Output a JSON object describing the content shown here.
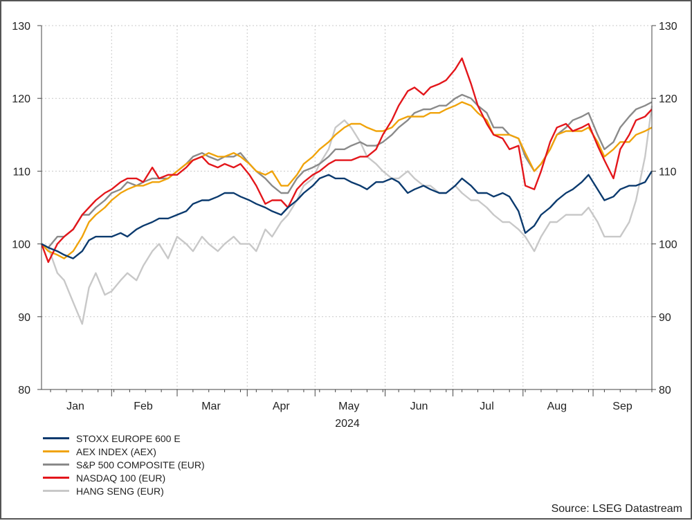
{
  "chart_data": {
    "type": "line",
    "year_label": "2024",
    "source": "Source: LSEG Datastream",
    "ylim": [
      80,
      130
    ],
    "y_ticks": [
      "80",
      "90",
      "100",
      "110",
      "120",
      "130"
    ],
    "x_range": [
      "2024-01-01",
      "2024-09-27"
    ],
    "months": [
      {
        "label": "Jan",
        "date": "2024-01-16"
      },
      {
        "label": "Feb",
        "date": "2024-02-15"
      },
      {
        "label": "Mar",
        "date": "2024-03-16"
      },
      {
        "label": "Apr",
        "date": "2024-04-16"
      },
      {
        "label": "May",
        "date": "2024-05-16"
      },
      {
        "label": "Jun",
        "date": "2024-06-16"
      },
      {
        "label": "Jul",
        "date": "2024-07-16"
      },
      {
        "label": "Aug",
        "date": "2024-08-16"
      },
      {
        "label": "Sep",
        "date": "2024-09-14"
      }
    ],
    "grid": true,
    "legend_position": "bottom-left",
    "series": [
      {
        "name": "HANG SENG (EUR)",
        "color": "#c8c8c8",
        "x": [
          "2024-01-01",
          "2024-01-04",
          "2024-01-08",
          "2024-01-11",
          "2024-01-15",
          "2024-01-19",
          "2024-01-22",
          "2024-01-25",
          "2024-01-29",
          "2024-02-01",
          "2024-02-05",
          "2024-02-08",
          "2024-02-12",
          "2024-02-15",
          "2024-02-19",
          "2024-02-22",
          "2024-02-26",
          "2024-03-01",
          "2024-03-05",
          "2024-03-08",
          "2024-03-12",
          "2024-03-15",
          "2024-03-19",
          "2024-03-22",
          "2024-03-26",
          "2024-03-29",
          "2024-04-02",
          "2024-04-05",
          "2024-04-09",
          "2024-04-12",
          "2024-04-16",
          "2024-04-19",
          "2024-04-23",
          "2024-04-26",
          "2024-04-30",
          "2024-05-03",
          "2024-05-07",
          "2024-05-10",
          "2024-05-14",
          "2024-05-17",
          "2024-05-21",
          "2024-05-24",
          "2024-05-28",
          "2024-05-31",
          "2024-06-04",
          "2024-06-07",
          "2024-06-11",
          "2024-06-14",
          "2024-06-18",
          "2024-06-21",
          "2024-06-25",
          "2024-06-28",
          "2024-07-02",
          "2024-07-05",
          "2024-07-09",
          "2024-07-12",
          "2024-07-16",
          "2024-07-19",
          "2024-07-23",
          "2024-07-26",
          "2024-07-30",
          "2024-08-02",
          "2024-08-06",
          "2024-08-09",
          "2024-08-13",
          "2024-08-16",
          "2024-08-20",
          "2024-08-23",
          "2024-08-27",
          "2024-08-30",
          "2024-09-03",
          "2024-09-06",
          "2024-09-10",
          "2024-09-13",
          "2024-09-17",
          "2024-09-20",
          "2024-09-24",
          "2024-09-27"
        ],
        "values": [
          100,
          99.5,
          96,
          95,
          92,
          89,
          94,
          96,
          93,
          93.5,
          95,
          96,
          95,
          97,
          99,
          100,
          98,
          101,
          100,
          99,
          101,
          100,
          99,
          100,
          101,
          100,
          100,
          99,
          102,
          101,
          103,
          104,
          106,
          108,
          109,
          111,
          113,
          116,
          117,
          116,
          114,
          112,
          111,
          110,
          109,
          109,
          110,
          109,
          108,
          108,
          107,
          107,
          108,
          107,
          106,
          106,
          105,
          104,
          103,
          103,
          102,
          101,
          99,
          101,
          103,
          103,
          104,
          104,
          104,
          105,
          103,
          101,
          101,
          101,
          103,
          106,
          112,
          119
        ]
      },
      {
        "name": "S&P 500 COMPOSITE (EUR)",
        "color": "#8a8a8a",
        "x": [
          "2024-01-01",
          "2024-01-04",
          "2024-01-08",
          "2024-01-11",
          "2024-01-15",
          "2024-01-19",
          "2024-01-22",
          "2024-01-25",
          "2024-01-29",
          "2024-02-01",
          "2024-02-05",
          "2024-02-08",
          "2024-02-12",
          "2024-02-15",
          "2024-02-19",
          "2024-02-22",
          "2024-02-26",
          "2024-03-01",
          "2024-03-05",
          "2024-03-08",
          "2024-03-12",
          "2024-03-15",
          "2024-03-19",
          "2024-03-22",
          "2024-03-26",
          "2024-03-29",
          "2024-04-02",
          "2024-04-05",
          "2024-04-09",
          "2024-04-12",
          "2024-04-16",
          "2024-04-19",
          "2024-04-23",
          "2024-04-26",
          "2024-04-30",
          "2024-05-03",
          "2024-05-07",
          "2024-05-10",
          "2024-05-14",
          "2024-05-17",
          "2024-05-21",
          "2024-05-24",
          "2024-05-28",
          "2024-05-31",
          "2024-06-04",
          "2024-06-07",
          "2024-06-11",
          "2024-06-14",
          "2024-06-18",
          "2024-06-21",
          "2024-06-25",
          "2024-06-28",
          "2024-07-02",
          "2024-07-05",
          "2024-07-09",
          "2024-07-12",
          "2024-07-16",
          "2024-07-19",
          "2024-07-23",
          "2024-07-26",
          "2024-07-30",
          "2024-08-02",
          "2024-08-06",
          "2024-08-09",
          "2024-08-13",
          "2024-08-16",
          "2024-08-20",
          "2024-08-23",
          "2024-08-27",
          "2024-08-30",
          "2024-09-03",
          "2024-09-06",
          "2024-09-10",
          "2024-09-13",
          "2024-09-17",
          "2024-09-20",
          "2024-09-24",
          "2024-09-27"
        ],
        "values": [
          100,
          99.5,
          101,
          101,
          102,
          104,
          104,
          105,
          106,
          107,
          107.5,
          108.5,
          108,
          108.5,
          109,
          109,
          109,
          110,
          111,
          112,
          112.5,
          112,
          111.5,
          112,
          112,
          112.5,
          111,
          110,
          109,
          108,
          107,
          107,
          109,
          110,
          110.5,
          111,
          112,
          113,
          113,
          113.5,
          114,
          113.5,
          113.5,
          114,
          115,
          116,
          117,
          118,
          118.5,
          118.5,
          119,
          119,
          120,
          120.5,
          120,
          119,
          118,
          116,
          116,
          115,
          114.5,
          112,
          110,
          111,
          113,
          115,
          116,
          117,
          117.5,
          118,
          115,
          113,
          114,
          116,
          117.5,
          118.5,
          119,
          119.5
        ]
      },
      {
        "name": "AEX INDEX (AEX)",
        "color": "#f0a30a",
        "x": [
          "2024-01-01",
          "2024-01-04",
          "2024-01-08",
          "2024-01-11",
          "2024-01-15",
          "2024-01-19",
          "2024-01-22",
          "2024-01-25",
          "2024-01-29",
          "2024-02-01",
          "2024-02-05",
          "2024-02-08",
          "2024-02-12",
          "2024-02-15",
          "2024-02-19",
          "2024-02-22",
          "2024-02-26",
          "2024-03-01",
          "2024-03-05",
          "2024-03-08",
          "2024-03-12",
          "2024-03-15",
          "2024-03-19",
          "2024-03-22",
          "2024-03-26",
          "2024-03-29",
          "2024-04-02",
          "2024-04-05",
          "2024-04-09",
          "2024-04-12",
          "2024-04-16",
          "2024-04-19",
          "2024-04-23",
          "2024-04-26",
          "2024-04-30",
          "2024-05-03",
          "2024-05-07",
          "2024-05-10",
          "2024-05-14",
          "2024-05-17",
          "2024-05-21",
          "2024-05-24",
          "2024-05-28",
          "2024-05-31",
          "2024-06-04",
          "2024-06-07",
          "2024-06-11",
          "2024-06-14",
          "2024-06-18",
          "2024-06-21",
          "2024-06-25",
          "2024-06-28",
          "2024-07-02",
          "2024-07-05",
          "2024-07-09",
          "2024-07-12",
          "2024-07-16",
          "2024-07-19",
          "2024-07-23",
          "2024-07-26",
          "2024-07-30",
          "2024-08-02",
          "2024-08-06",
          "2024-08-09",
          "2024-08-13",
          "2024-08-16",
          "2024-08-20",
          "2024-08-23",
          "2024-08-27",
          "2024-08-30",
          "2024-09-03",
          "2024-09-06",
          "2024-09-10",
          "2024-09-13",
          "2024-09-17",
          "2024-09-20",
          "2024-09-24",
          "2024-09-27"
        ],
        "values": [
          100,
          99,
          98.5,
          98,
          99,
          101,
          103,
          104,
          105,
          106,
          107,
          107.5,
          108,
          108,
          108.5,
          108.5,
          109,
          110,
          111,
          111.5,
          112,
          112.5,
          112,
          112,
          112.5,
          112,
          111,
          110,
          109.5,
          110,
          108,
          108,
          109.5,
          111,
          112,
          113,
          114,
          115,
          116,
          116.5,
          116.5,
          116,
          115.5,
          115.5,
          116,
          117,
          117.5,
          117.5,
          117.5,
          118,
          118,
          118.5,
          119,
          119.5,
          119,
          118,
          117,
          115,
          115,
          115,
          114.5,
          112.5,
          110,
          111,
          113,
          115,
          115.5,
          115.5,
          115.5,
          116,
          114,
          112,
          113,
          114,
          114,
          115,
          115.5,
          116
        ]
      },
      {
        "name": "NASDAQ 100 (EUR)",
        "color": "#e3161b",
        "x": [
          "2024-01-01",
          "2024-01-04",
          "2024-01-08",
          "2024-01-11",
          "2024-01-15",
          "2024-01-19",
          "2024-01-22",
          "2024-01-25",
          "2024-01-29",
          "2024-02-01",
          "2024-02-05",
          "2024-02-08",
          "2024-02-12",
          "2024-02-15",
          "2024-02-19",
          "2024-02-22",
          "2024-02-26",
          "2024-03-01",
          "2024-03-05",
          "2024-03-08",
          "2024-03-12",
          "2024-03-15",
          "2024-03-19",
          "2024-03-22",
          "2024-03-26",
          "2024-03-29",
          "2024-04-02",
          "2024-04-05",
          "2024-04-09",
          "2024-04-12",
          "2024-04-16",
          "2024-04-19",
          "2024-04-23",
          "2024-04-26",
          "2024-04-30",
          "2024-05-03",
          "2024-05-07",
          "2024-05-10",
          "2024-05-14",
          "2024-05-17",
          "2024-05-21",
          "2024-05-24",
          "2024-05-28",
          "2024-05-31",
          "2024-06-04",
          "2024-06-07",
          "2024-06-11",
          "2024-06-14",
          "2024-06-18",
          "2024-06-21",
          "2024-06-25",
          "2024-06-28",
          "2024-07-02",
          "2024-07-05",
          "2024-07-09",
          "2024-07-12",
          "2024-07-16",
          "2024-07-19",
          "2024-07-23",
          "2024-07-26",
          "2024-07-30",
          "2024-08-02",
          "2024-08-06",
          "2024-08-09",
          "2024-08-13",
          "2024-08-16",
          "2024-08-20",
          "2024-08-23",
          "2024-08-27",
          "2024-08-30",
          "2024-09-03",
          "2024-09-06",
          "2024-09-10",
          "2024-09-13",
          "2024-09-17",
          "2024-09-20",
          "2024-09-24",
          "2024-09-27"
        ],
        "values": [
          100,
          97.5,
          100,
          101,
          102,
          104,
          105,
          106,
          107,
          107.5,
          108.5,
          109,
          109,
          108.5,
          110.5,
          109,
          109.5,
          109.5,
          110.5,
          111.5,
          112,
          111,
          110.5,
          111,
          110.5,
          111,
          109.5,
          108,
          105.5,
          106,
          106,
          105,
          107.5,
          108.5,
          109.5,
          110,
          111,
          111.5,
          111.5,
          111.5,
          112,
          112,
          113,
          115,
          117,
          119,
          121,
          121.5,
          120.5,
          121.5,
          122,
          122.5,
          124,
          125.5,
          122,
          119,
          116.5,
          115,
          114.5,
          113,
          113.5,
          108,
          107.5,
          110,
          114,
          116,
          116.5,
          115.5,
          116,
          116.5,
          113.5,
          111.5,
          109,
          113,
          115,
          117,
          117.5,
          118.5
        ]
      },
      {
        "name": "STOXX EUROPE 600 E",
        "color": "#0b3a6e",
        "x": [
          "2024-01-01",
          "2024-01-04",
          "2024-01-08",
          "2024-01-11",
          "2024-01-15",
          "2024-01-19",
          "2024-01-22",
          "2024-01-25",
          "2024-01-29",
          "2024-02-01",
          "2024-02-05",
          "2024-02-08",
          "2024-02-12",
          "2024-02-15",
          "2024-02-19",
          "2024-02-22",
          "2024-02-26",
          "2024-03-01",
          "2024-03-05",
          "2024-03-08",
          "2024-03-12",
          "2024-03-15",
          "2024-03-19",
          "2024-03-22",
          "2024-03-26",
          "2024-03-29",
          "2024-04-02",
          "2024-04-05",
          "2024-04-09",
          "2024-04-12",
          "2024-04-16",
          "2024-04-19",
          "2024-04-23",
          "2024-04-26",
          "2024-04-30",
          "2024-05-03",
          "2024-05-07",
          "2024-05-10",
          "2024-05-14",
          "2024-05-17",
          "2024-05-21",
          "2024-05-24",
          "2024-05-28",
          "2024-05-31",
          "2024-06-04",
          "2024-06-07",
          "2024-06-11",
          "2024-06-14",
          "2024-06-18",
          "2024-06-21",
          "2024-06-25",
          "2024-06-28",
          "2024-07-02",
          "2024-07-05",
          "2024-07-09",
          "2024-07-12",
          "2024-07-16",
          "2024-07-19",
          "2024-07-23",
          "2024-07-26",
          "2024-07-30",
          "2024-08-02",
          "2024-08-06",
          "2024-08-09",
          "2024-08-13",
          "2024-08-16",
          "2024-08-20",
          "2024-08-23",
          "2024-08-27",
          "2024-08-30",
          "2024-09-03",
          "2024-09-06",
          "2024-09-10",
          "2024-09-13",
          "2024-09-17",
          "2024-09-20",
          "2024-09-24",
          "2024-09-27"
        ],
        "values": [
          100,
          99.5,
          99,
          98.5,
          98,
          99,
          100.5,
          101,
          101,
          101,
          101.5,
          101,
          102,
          102.5,
          103,
          103.5,
          103.5,
          104,
          104.5,
          105.5,
          106,
          106,
          106.5,
          107,
          107,
          106.5,
          106,
          105.5,
          105,
          104.5,
          104,
          105,
          106,
          107,
          108,
          109,
          109.5,
          109,
          109,
          108.5,
          108,
          107.5,
          108.5,
          108.5,
          109,
          108.5,
          107,
          107.5,
          108,
          107.5,
          107,
          107,
          108,
          109,
          108,
          107,
          107,
          106.5,
          107,
          106.5,
          104.5,
          101.5,
          102.5,
          104,
          105,
          106,
          107,
          107.5,
          108.5,
          109.5,
          107.5,
          106,
          106.5,
          107.5,
          108,
          108,
          108.5,
          110
        ]
      }
    ],
    "legend": [
      {
        "label": "STOXX EUROPE 600 E",
        "color": "#0b3a6e"
      },
      {
        "label": "AEX INDEX (AEX)",
        "color": "#f0a30a"
      },
      {
        "label": "S&P 500 COMPOSITE (EUR)",
        "color": "#8a8a8a"
      },
      {
        "label": "NASDAQ 100 (EUR)",
        "color": "#e3161b"
      },
      {
        "label": "HANG SENG (EUR)",
        "color": "#c8c8c8"
      }
    ]
  }
}
